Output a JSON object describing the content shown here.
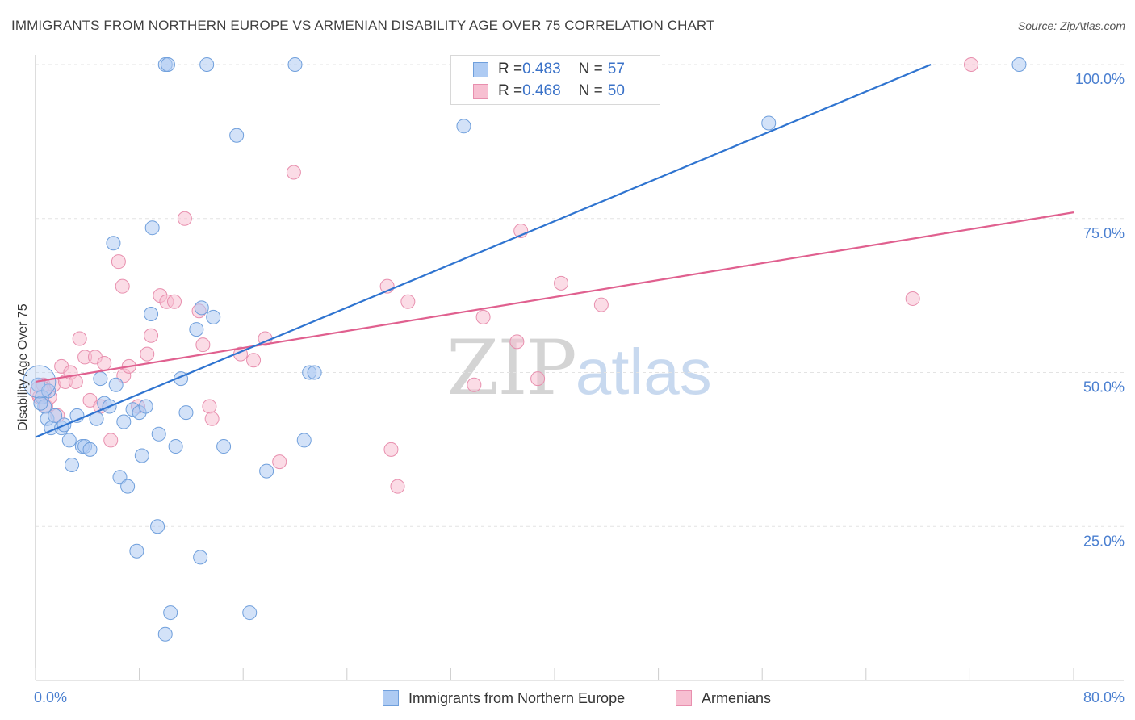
{
  "title": "IMMIGRANTS FROM NORTHERN EUROPE VS ARMENIAN DISABILITY AGE OVER 75 CORRELATION CHART",
  "source": "Source: ZipAtlas.com",
  "watermark": {
    "zip": "ZIP",
    "atlas": "atlas"
  },
  "legend": {
    "rows": [
      {
        "r_label": "R = ",
        "r_value": "0.483",
        "n_label": "N = ",
        "n_value": "57"
      },
      {
        "r_label": "R = ",
        "r_value": "0.468",
        "n_label": "N = ",
        "n_value": "50"
      }
    ]
  },
  "bottom_legend": [
    "Immigrants from Northern Europe",
    "Armenians"
  ],
  "colors": {
    "blue_fill": "#aecbf3",
    "blue_stroke": "#6f9fdc",
    "blue_line": "#2f74d0",
    "pink_fill": "#f7bfd1",
    "pink_stroke": "#e88fae",
    "pink_line": "#e0608f",
    "grid": "#e3e3e3",
    "tick_text": "#4a7fd0"
  },
  "chart_data": {
    "type": "scatter",
    "title": "IMMIGRANTS FROM NORTHERN EUROPE VS ARMENIAN DISABILITY AGE OVER 75 CORRELATION CHART",
    "xlabel": "",
    "ylabel": "Disability Age Over 75",
    "xlim": [
      0,
      80
    ],
    "ylim": [
      0,
      100
    ],
    "x_tick_labels": [
      "0.0%",
      "80.0%"
    ],
    "y_ticks": [
      25,
      50,
      75,
      100
    ],
    "y_tick_labels": [
      "25.0%",
      "50.0%",
      "75.0%",
      "100.0%"
    ],
    "grid": true,
    "legend_position": "top-center",
    "series": [
      {
        "name": "Immigrants from Northern Europe",
        "color": "blue",
        "R": 0.483,
        "N": 57,
        "trend": {
          "x1": 0,
          "y1": 39.5,
          "x2": 69,
          "y2": 100
        },
        "points": [
          [
            0.2,
            48
          ],
          [
            0.5,
            46
          ],
          [
            0.7,
            44.5
          ],
          [
            0.9,
            42.5
          ],
          [
            1.2,
            41
          ],
          [
            1.5,
            43
          ],
          [
            2.0,
            41
          ],
          [
            2.2,
            41.5
          ],
          [
            2.6,
            39
          ],
          [
            2.8,
            35
          ],
          [
            3.2,
            43
          ],
          [
            3.6,
            38
          ],
          [
            3.8,
            38
          ],
          [
            4.2,
            37.5
          ],
          [
            4.7,
            42.5
          ],
          [
            5.0,
            49
          ],
          [
            5.3,
            45
          ],
          [
            5.7,
            44.5
          ],
          [
            6.0,
            71
          ],
          [
            6.2,
            48
          ],
          [
            6.5,
            33
          ],
          [
            6.8,
            42
          ],
          [
            7.1,
            31.5
          ],
          [
            7.5,
            44
          ],
          [
            7.8,
            21
          ],
          [
            8.0,
            43.5
          ],
          [
            8.2,
            36.5
          ],
          [
            8.5,
            44.5
          ],
          [
            9.0,
            73.5
          ],
          [
            8.9,
            59.5
          ],
          [
            9.5,
            40
          ],
          [
            9.4,
            25
          ],
          [
            10.0,
            100
          ],
          [
            10.2,
            100
          ],
          [
            10.0,
            7.5
          ],
          [
            10.4,
            11
          ],
          [
            10.8,
            38
          ],
          [
            11.2,
            49
          ],
          [
            11.6,
            43.5
          ],
          [
            12.4,
            57
          ],
          [
            12.8,
            60.5
          ],
          [
            12.7,
            20
          ],
          [
            13.2,
            100
          ],
          [
            13.7,
            59
          ],
          [
            14.5,
            38
          ],
          [
            15.5,
            88.5
          ],
          [
            16.5,
            11
          ],
          [
            17.8,
            34
          ],
          [
            20.0,
            100
          ],
          [
            20.7,
            39
          ],
          [
            21.1,
            50
          ],
          [
            21.5,
            50
          ],
          [
            33.0,
            90
          ],
          [
            56.5,
            90.5
          ],
          [
            75.8,
            100
          ],
          [
            1.0,
            47
          ],
          [
            0.4,
            45
          ]
        ]
      },
      {
        "name": "Armenians",
        "color": "pink",
        "R": 0.468,
        "N": 50,
        "trend": {
          "x1": 0,
          "y1": 48.5,
          "x2": 80,
          "y2": 76
        },
        "points": [
          [
            0.3,
            46
          ],
          [
            0.6,
            48
          ],
          [
            0.8,
            44.5
          ],
          [
            1.1,
            46
          ],
          [
            1.4,
            48
          ],
          [
            1.7,
            43
          ],
          [
            2.0,
            51
          ],
          [
            2.3,
            48.5
          ],
          [
            2.7,
            50
          ],
          [
            3.1,
            48.5
          ],
          [
            3.4,
            55.5
          ],
          [
            3.8,
            52.5
          ],
          [
            4.2,
            45.5
          ],
          [
            4.6,
            52.5
          ],
          [
            5.0,
            44.5
          ],
          [
            5.3,
            51.5
          ],
          [
            5.8,
            39
          ],
          [
            6.4,
            68
          ],
          [
            6.7,
            64
          ],
          [
            6.8,
            49.5
          ],
          [
            7.2,
            51
          ],
          [
            7.9,
            44.5
          ],
          [
            8.6,
            53
          ],
          [
            8.9,
            56
          ],
          [
            9.6,
            62.5
          ],
          [
            10.1,
            61.5
          ],
          [
            10.7,
            61.5
          ],
          [
            11.5,
            75
          ],
          [
            12.6,
            60
          ],
          [
            12.9,
            54.5
          ],
          [
            13.4,
            44.5
          ],
          [
            13.6,
            42.5
          ],
          [
            15.8,
            53
          ],
          [
            16.8,
            52
          ],
          [
            17.7,
            55.5
          ],
          [
            18.8,
            35.5
          ],
          [
            19.9,
            82.5
          ],
          [
            27.1,
            64
          ],
          [
            27.4,
            37.5
          ],
          [
            27.9,
            31.5
          ],
          [
            28.7,
            61.5
          ],
          [
            33.8,
            48
          ],
          [
            34.5,
            59
          ],
          [
            37.1,
            55
          ],
          [
            37.4,
            73
          ],
          [
            38.7,
            49
          ],
          [
            40.5,
            64.5
          ],
          [
            43.6,
            61
          ],
          [
            67.6,
            62
          ],
          [
            72.1,
            100
          ]
        ]
      }
    ]
  }
}
